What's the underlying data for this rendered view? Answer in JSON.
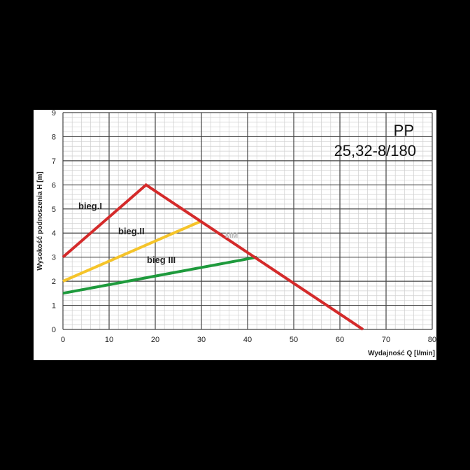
{
  "chart_data": {
    "type": "line",
    "xlabel": "Wydajność Q [l/min]",
    "ylabel": "Wysokość podnoszenia H [m]",
    "xlim": [
      0,
      80
    ],
    "ylim": [
      0,
      9
    ],
    "x_ticks": [
      "0",
      "10",
      "20",
      "30",
      "40",
      "50",
      "60",
      "70",
      "80"
    ],
    "y_ticks": [
      "0",
      "1",
      "2",
      "3",
      "4",
      "5",
      "6",
      "7",
      "8",
      "9"
    ],
    "grid": true,
    "model": [
      "PP",
      "25,32-8/180"
    ],
    "watermark": "MM",
    "series": [
      {
        "name": "bieg.I",
        "color": "#d42a2a",
        "x": [
          0,
          18,
          65
        ],
        "y": [
          3,
          6,
          0
        ]
      },
      {
        "name": "bieg.II",
        "color": "#f5c42a",
        "x": [
          0,
          30
        ],
        "y": [
          2,
          4.5
        ]
      },
      {
        "name": "bieg III",
        "color": "#1e9a3c",
        "x": [
          0,
          42
        ],
        "y": [
          1.5,
          3
        ]
      }
    ]
  }
}
